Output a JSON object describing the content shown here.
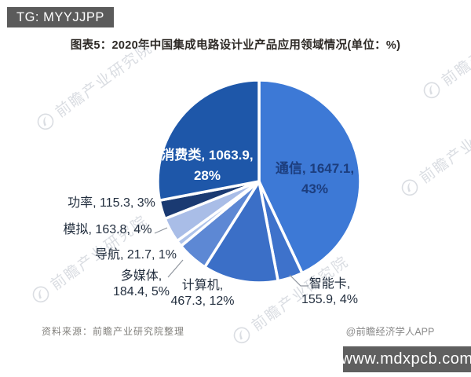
{
  "header": {
    "tag": "TG: MYYJJPP"
  },
  "title": "图表5：2020年中国集成电路设计业产品应用领域情况(单位：%)",
  "chart_data": {
    "type": "pie",
    "title": "2020年中国集成电路设计业产品应用领域情况",
    "unit": "%",
    "direction": "clockwise",
    "start_angle_deg": 0,
    "series": [
      {
        "name": "通信",
        "value": 1647.1,
        "pct": 43,
        "color": "#3d79d6",
        "label_lines": [
          "通信, 1647.1,",
          "43%"
        ]
      },
      {
        "name": "智能卡",
        "value": 155.9,
        "pct": 4,
        "color": "#3e72cb",
        "label_lines": [
          "智能卡,",
          "155.9, 4%"
        ]
      },
      {
        "name": "计算机",
        "value": 467.3,
        "pct": 12,
        "color": "#3b6fc7",
        "label_lines": [
          "计算机,",
          "467.3, 12%"
        ]
      },
      {
        "name": "多媒体",
        "value": 184.4,
        "pct": 5,
        "color": "#5d88d4",
        "label_lines": [
          "多媒体,",
          "184.4, 5%"
        ]
      },
      {
        "name": "导航",
        "value": 21.7,
        "pct": 1,
        "color": "#aec3ea",
        "label_lines": [
          "导航, 21.7, 1%"
        ]
      },
      {
        "name": "模拟",
        "value": 163.8,
        "pct": 4,
        "color": "#a9bde7",
        "label_lines": [
          "模拟, 163.8, 4%"
        ]
      },
      {
        "name": "功率",
        "value": 115.3,
        "pct": 3,
        "color": "#1a3a72",
        "label_lines": [
          "功率, 115.3, 3%"
        ]
      },
      {
        "name": "消费类",
        "value": 1063.9,
        "pct": 28,
        "color": "#1e57a9",
        "label_lines": [
          "消费类, 1063.9,",
          "28%"
        ]
      }
    ]
  },
  "watermark": {
    "text": "前瞻产业研究院",
    "logo": "qianzhan-circle-logo"
  },
  "footer": {
    "source": "资料来源：前瞻产业研究院整理",
    "credit": "@前瞻经济学人APP",
    "url_bar": "www.mdxpcb.com"
  },
  "colors": {
    "header_bar_bg": "#5b5b5b",
    "url_bar_bg": "#5f5f5f",
    "in_label_consumer": "#ffffff",
    "in_label_telecom": "#1c3d7d",
    "outside_label": "#232f3f",
    "leader_line": "#8f959e"
  }
}
